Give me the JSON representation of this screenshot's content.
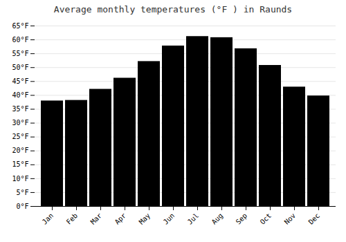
{
  "chart_data": {
    "type": "bar",
    "title": "Average monthly temperatures (°F ) in Raunds",
    "categories": [
      "Jan",
      "Feb",
      "Mar",
      "Apr",
      "May",
      "Jun",
      "Jul",
      "Aug",
      "Sep",
      "Oct",
      "Nov",
      "Dec"
    ],
    "values": [
      38.0,
      38.2,
      42.2,
      46.2,
      52.2,
      57.8,
      61.2,
      60.8,
      56.8,
      50.8,
      43.0,
      39.8
    ],
    "ylim": [
      0,
      65
    ],
    "yticks": [
      {
        "value": 0,
        "label": "0°F"
      },
      {
        "value": 5,
        "label": "5°F"
      },
      {
        "value": 10,
        "label": "10°F"
      },
      {
        "value": 15,
        "label": "15°F"
      },
      {
        "value": 20,
        "label": "20°F"
      },
      {
        "value": 25,
        "label": "25°F"
      },
      {
        "value": 30,
        "label": "30°F"
      },
      {
        "value": 35,
        "label": "35°F"
      },
      {
        "value": 40,
        "label": "40°F"
      },
      {
        "value": 45,
        "label": "45°F"
      },
      {
        "value": 50,
        "label": "50°F"
      },
      {
        "value": 55,
        "label": "55°F"
      },
      {
        "value": 60,
        "label": "60°F"
      },
      {
        "value": 65,
        "label": "65°F"
      }
    ],
    "grid": true
  }
}
